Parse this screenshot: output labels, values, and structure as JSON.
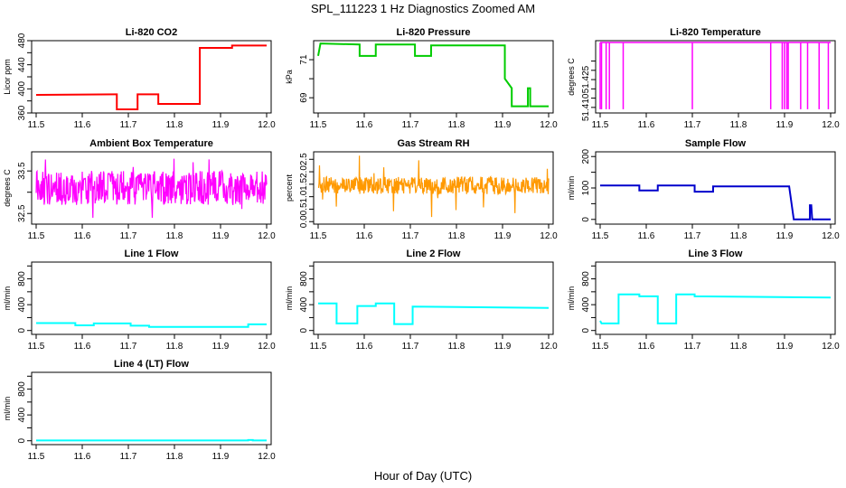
{
  "figure": {
    "suptitle": "SPL_111223  1 Hz Diagnostics Zoomed AM",
    "xlabel": "Hour of Day (UTC)"
  },
  "chart_data": [
    {
      "type": "line",
      "title": "Li-820 CO2",
      "ylabel": "Licor ppm",
      "color": "#ff0000",
      "xlim": [
        11.5,
        12.0
      ],
      "ylim": [
        360,
        480
      ],
      "xticks": [
        11.5,
        11.6,
        11.7,
        11.8,
        11.9,
        12.0
      ],
      "yticks": [
        360,
        380,
        400,
        420,
        440,
        460,
        480
      ],
      "yticklabels": [
        "360",
        "",
        "400",
        "",
        "440",
        "",
        "480"
      ],
      "x": [
        11.5,
        11.675,
        11.675,
        11.72,
        11.72,
        11.765,
        11.765,
        11.805,
        11.805,
        11.855,
        11.855,
        11.925,
        11.925,
        12.0
      ],
      "y": [
        390,
        391,
        366,
        366,
        391,
        391,
        375,
        375,
        375,
        375,
        468,
        468,
        472,
        472
      ]
    },
    {
      "type": "line",
      "title": "Li-820 Pressure",
      "ylabel": "kPa",
      "color": "#00cc00",
      "xlim": [
        11.5,
        12.0
      ],
      "ylim": [
        68.2,
        72.0
      ],
      "xticks": [
        11.5,
        11.6,
        11.7,
        11.8,
        11.9,
        12.0
      ],
      "yticks": [
        69,
        70,
        71
      ],
      "yticklabels": [
        "69",
        "",
        "71"
      ],
      "x": [
        11.5,
        11.505,
        11.59,
        11.59,
        11.625,
        11.625,
        11.71,
        11.71,
        11.745,
        11.745,
        11.905,
        11.905,
        11.92,
        11.92,
        11.955,
        11.955,
        11.96,
        11.96,
        12.0
      ],
      "y": [
        71.2,
        71.85,
        71.8,
        71.2,
        71.2,
        71.8,
        71.8,
        71.2,
        71.2,
        71.75,
        71.75,
        70.0,
        69.5,
        68.55,
        68.55,
        69.5,
        69.5,
        68.55,
        68.55
      ]
    },
    {
      "type": "line",
      "title": "Li-820 Temperature",
      "ylabel": "degrees C",
      "color": "#ff00ff",
      "xlim": [
        11.5,
        12.0
      ],
      "ylim": [
        51.407,
        51.446
      ],
      "xticks": [
        11.5,
        11.6,
        11.7,
        11.8,
        11.9,
        12.0
      ],
      "yticks": [
        51.41,
        51.415,
        51.42,
        51.425,
        51.43,
        51.435
      ],
      "yticklabels": [
        "51.410",
        "",
        "",
        "51.425",
        "",
        ""
      ],
      "baseline": 51.445,
      "dip_to": 51.409,
      "dips": [
        11.5,
        11.503,
        11.513,
        11.52,
        11.55,
        11.7,
        11.87,
        11.895,
        11.9,
        11.905,
        11.908,
        11.935,
        11.95,
        11.975,
        11.995
      ]
    },
    {
      "type": "noise",
      "title": "Ambient Box Temperature",
      "ylabel": "degrees C",
      "color": "#ff00ff",
      "xlim": [
        11.5,
        12.0
      ],
      "ylim": [
        32.25,
        33.95
      ],
      "xticks": [
        11.5,
        11.6,
        11.7,
        11.8,
        11.9,
        12.0
      ],
      "yticks": [
        32.5,
        33.0,
        33.5
      ],
      "yticklabels": [
        "32.5",
        "",
        "33.5"
      ],
      "center": 33.1,
      "amplitude": 0.4,
      "min": 32.4,
      "max": 33.85
    },
    {
      "type": "noise",
      "title": "Gas Stream RH",
      "ylabel": "percent",
      "color": "#ff9900",
      "xlim": [
        11.5,
        12.0
      ],
      "ylim": [
        -0.1,
        2.8
      ],
      "xticks": [
        11.5,
        11.6,
        11.7,
        11.8,
        11.9,
        12.0
      ],
      "yticks": [
        0.0,
        0.5,
        1.0,
        1.5,
        2.0,
        2.5
      ],
      "yticklabels": [
        "0.0",
        "0.5",
        "1.0",
        "1.5",
        "2.0",
        "2.5"
      ],
      "center": 1.45,
      "amplitude": 0.35,
      "min": 0.0,
      "max": 2.75
    },
    {
      "type": "line",
      "title": "Sample Flow",
      "ylabel": "ml/min",
      "color": "#0000cc",
      "xlim": [
        11.5,
        12.0
      ],
      "ylim": [
        -15,
        215
      ],
      "xticks": [
        11.5,
        11.6,
        11.7,
        11.8,
        11.9,
        12.0
      ],
      "yticks": [
        0,
        50,
        100,
        150,
        200
      ],
      "yticklabels": [
        "0",
        "",
        "100",
        "",
        "200"
      ],
      "x": [
        11.5,
        11.585,
        11.585,
        11.625,
        11.625,
        11.705,
        11.705,
        11.745,
        11.745,
        11.91,
        11.92,
        11.955,
        11.955,
        11.958,
        11.96,
        12.0
      ],
      "y": [
        108,
        108,
        92,
        92,
        108,
        108,
        88,
        88,
        105,
        105,
        0,
        0,
        45,
        45,
        0,
        0
      ]
    },
    {
      "type": "line",
      "title": "Line 1 Flow",
      "ylabel": "ml/min",
      "color": "#00ffff",
      "xlim": [
        11.5,
        12.0
      ],
      "ylim": [
        -60,
        1060
      ],
      "xticks": [
        11.5,
        11.6,
        11.7,
        11.8,
        11.9,
        12.0
      ],
      "yticks": [
        0,
        200,
        400,
        600,
        800,
        1000
      ],
      "yticklabels": [
        "0",
        "",
        "400",
        "",
        "800",
        ""
      ],
      "x": [
        11.5,
        11.585,
        11.585,
        11.625,
        11.625,
        11.705,
        11.705,
        11.745,
        11.745,
        11.96,
        11.96,
        12.0
      ],
      "y": [
        115,
        115,
        80,
        80,
        110,
        110,
        75,
        75,
        55,
        55,
        95,
        95
      ]
    },
    {
      "type": "line",
      "title": "Line 2 Flow",
      "ylabel": "ml/min",
      "color": "#00ffff",
      "xlim": [
        11.5,
        12.0
      ],
      "ylim": [
        -60,
        1060
      ],
      "xticks": [
        11.5,
        11.6,
        11.7,
        11.8,
        11.9,
        12.0
      ],
      "yticks": [
        0,
        200,
        400,
        600,
        800,
        1000
      ],
      "yticklabels": [
        "0",
        "",
        "400",
        "",
        "800",
        ""
      ],
      "x": [
        11.5,
        11.54,
        11.54,
        11.585,
        11.585,
        11.625,
        11.625,
        11.665,
        11.665,
        11.705,
        11.705,
        12.0
      ],
      "y": [
        420,
        420,
        110,
        110,
        380,
        380,
        420,
        420,
        100,
        100,
        370,
        350
      ]
    },
    {
      "type": "line",
      "title": "Line 3 Flow",
      "ylabel": "ml/min",
      "color": "#00ffff",
      "xlim": [
        11.5,
        12.0
      ],
      "ylim": [
        -60,
        1060
      ],
      "xticks": [
        11.5,
        11.6,
        11.7,
        11.8,
        11.9,
        12.0
      ],
      "yticks": [
        0,
        200,
        400,
        600,
        800,
        1000
      ],
      "yticklabels": [
        "0",
        "",
        "400",
        "",
        "800",
        ""
      ],
      "x": [
        11.5,
        11.503,
        11.505,
        11.54,
        11.54,
        11.585,
        11.585,
        11.625,
        11.625,
        11.665,
        11.665,
        11.705,
        11.705,
        12.0
      ],
      "y": [
        150,
        110,
        110,
        110,
        560,
        560,
        530,
        530,
        110,
        110,
        560,
        560,
        530,
        510
      ]
    },
    {
      "type": "line",
      "title": "Line 4 (LT) Flow",
      "ylabel": "ml/min",
      "color": "#00ffff",
      "xlim": [
        11.5,
        12.0
      ],
      "ylim": [
        -60,
        1060
      ],
      "xticks": [
        11.5,
        11.6,
        11.7,
        11.8,
        11.9,
        12.0
      ],
      "yticks": [
        0,
        200,
        400,
        600,
        800,
        1000
      ],
      "yticklabels": [
        "0",
        "",
        "400",
        "",
        "800",
        ""
      ],
      "x": [
        11.5,
        11.96,
        11.96,
        11.97,
        11.97,
        12.0
      ],
      "y": [
        5,
        5,
        12,
        12,
        5,
        5
      ]
    }
  ]
}
